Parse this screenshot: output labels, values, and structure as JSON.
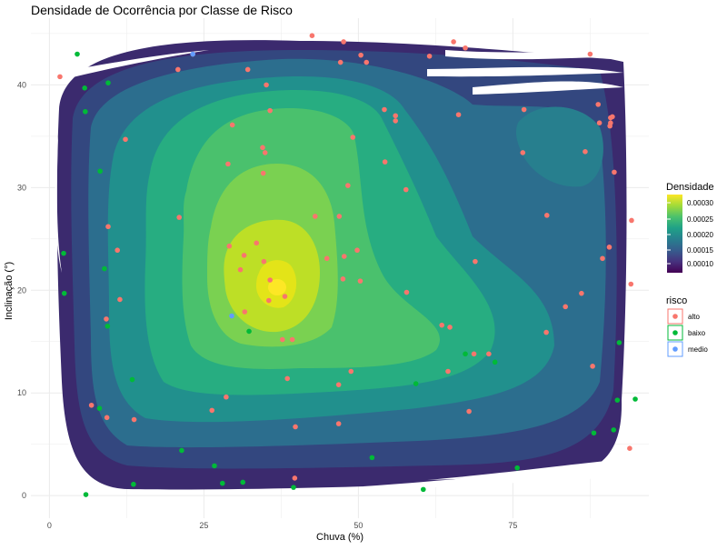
{
  "chart_data": {
    "type": "scatter",
    "title": "Densidade de Ocorrência por Classe de Risco",
    "xlabel": "Chuva (%)",
    "ylabel": "Inclinação (°)",
    "xlim": [
      -3,
      97
    ],
    "ylim": [
      -2.2,
      46.5
    ],
    "xticks": [
      0,
      25,
      50,
      75
    ],
    "yticks": [
      0,
      10,
      20,
      30,
      40
    ],
    "grid": true,
    "density_legend": {
      "title": "Densidade",
      "labels": [
        "0.00030",
        "0.00025",
        "0.00020",
        "0.00015",
        "0.00010"
      ],
      "gradient": [
        "#fde725",
        "#a0da39",
        "#4ac16d",
        "#1fa187",
        "#277f8e",
        "#365c8d",
        "#46327e",
        "#440154"
      ]
    },
    "risk_legend": {
      "title": "risco",
      "entries": [
        {
          "label": "alto",
          "color": "#f8766d"
        },
        {
          "label": "baixo",
          "color": "#00ba38"
        },
        {
          "label": "medio",
          "color": "#619cff"
        }
      ]
    },
    "series": [
      {
        "name": "alto",
        "color": "#f8766d",
        "points": [
          [
            1.7,
            40.8
          ],
          [
            12.3,
            34.7
          ],
          [
            20.8,
            41.5
          ],
          [
            23.2,
            43.0
          ],
          [
            32.1,
            41.5
          ],
          [
            35.1,
            40.0
          ],
          [
            35.7,
            37.5
          ],
          [
            42.5,
            44.8
          ],
          [
            47.6,
            44.2
          ],
          [
            47.1,
            42.2
          ],
          [
            51.3,
            42.2
          ],
          [
            50.4,
            42.9
          ],
          [
            54.2,
            37.6
          ],
          [
            56.0,
            37.0
          ],
          [
            56.0,
            36.5
          ],
          [
            61.5,
            42.8
          ],
          [
            65.4,
            44.2
          ],
          [
            67.3,
            43.6
          ],
          [
            66.2,
            37.1
          ],
          [
            76.8,
            37.6
          ],
          [
            87.5,
            43.0
          ],
          [
            88.8,
            38.1
          ],
          [
            89.0,
            36.3
          ],
          [
            90.8,
            36.3
          ],
          [
            90.8,
            36.8
          ],
          [
            91.1,
            36.9
          ],
          [
            90.7,
            36.0
          ],
          [
            29.6,
            36.1
          ],
          [
            28.9,
            32.3
          ],
          [
            34.9,
            33.4
          ],
          [
            34.5,
            33.9
          ],
          [
            34.6,
            31.4
          ],
          [
            49.1,
            34.9
          ],
          [
            48.3,
            30.2
          ],
          [
            54.3,
            32.5
          ],
          [
            57.7,
            29.8
          ],
          [
            76.6,
            33.4
          ],
          [
            86.7,
            33.5
          ],
          [
            91.4,
            31.5
          ],
          [
            21.0,
            27.1
          ],
          [
            9.5,
            26.2
          ],
          [
            11.0,
            23.9
          ],
          [
            29.1,
            24.3
          ],
          [
            31.5,
            23.4
          ],
          [
            30.9,
            22.0
          ],
          [
            33.5,
            24.6
          ],
          [
            34.7,
            22.8
          ],
          [
            35.7,
            21.0
          ],
          [
            35.5,
            19.0
          ],
          [
            31.6,
            17.9
          ],
          [
            37.7,
            15.2
          ],
          [
            39.3,
            15.2
          ],
          [
            38.1,
            19.4
          ],
          [
            43.0,
            27.2
          ],
          [
            44.9,
            23.1
          ],
          [
            46.9,
            27.2
          ],
          [
            47.7,
            23.3
          ],
          [
            47.5,
            21.1
          ],
          [
            49.8,
            23.9
          ],
          [
            50.3,
            20.9
          ],
          [
            57.8,
            19.8
          ],
          [
            63.5,
            16.6
          ],
          [
            64.8,
            16.4
          ],
          [
            68.9,
            22.8
          ],
          [
            68.7,
            13.8
          ],
          [
            71.1,
            13.8
          ],
          [
            80.5,
            27.3
          ],
          [
            80.4,
            15.9
          ],
          [
            83.5,
            18.4
          ],
          [
            86.1,
            19.7
          ],
          [
            89.5,
            23.1
          ],
          [
            90.6,
            24.2
          ],
          [
            94.2,
            26.8
          ],
          [
            94.1,
            20.6
          ],
          [
            11.4,
            19.1
          ],
          [
            9.2,
            17.2
          ],
          [
            6.8,
            8.8
          ],
          [
            9.3,
            7.6
          ],
          [
            13.7,
            7.4
          ],
          [
            26.3,
            8.3
          ],
          [
            28.6,
            9.6
          ],
          [
            38.5,
            11.4
          ],
          [
            46.8,
            10.8
          ],
          [
            48.8,
            12.1
          ],
          [
            46.8,
            7.0
          ],
          [
            39.8,
            6.7
          ],
          [
            64.5,
            12.1
          ],
          [
            67.9,
            8.2
          ],
          [
            87.9,
            12.6
          ],
          [
            93.9,
            4.6
          ],
          [
            39.7,
            1.7
          ]
        ]
      },
      {
        "name": "baixo",
        "color": "#00ba38",
        "points": [
          [
            4.5,
            43.0
          ],
          [
            5.7,
            39.7
          ],
          [
            5.8,
            37.4
          ],
          [
            9.5,
            40.2
          ],
          [
            8.2,
            31.6
          ],
          [
            2.3,
            23.6
          ],
          [
            2.4,
            19.7
          ],
          [
            8.9,
            22.1
          ],
          [
            9.4,
            16.5
          ],
          [
            32.3,
            16.0
          ],
          [
            13.4,
            11.3
          ],
          [
            8.1,
            8.5
          ],
          [
            21.4,
            4.4
          ],
          [
            26.7,
            2.9
          ],
          [
            28.0,
            1.2
          ],
          [
            31.3,
            1.3
          ],
          [
            13.6,
            1.1
          ],
          [
            5.9,
            0.1
          ],
          [
            39.5,
            0.8
          ],
          [
            52.2,
            3.7
          ],
          [
            59.3,
            10.9
          ],
          [
            60.5,
            0.6
          ],
          [
            67.3,
            13.8
          ],
          [
            72.1,
            13.0
          ],
          [
            75.7,
            2.7
          ],
          [
            88.1,
            6.1
          ],
          [
            92.2,
            14.9
          ],
          [
            91.9,
            9.3
          ],
          [
            91.3,
            6.4
          ],
          [
            94.8,
            9.4
          ]
        ]
      },
      {
        "name": "medio",
        "color": "#619cff",
        "points": [
          [
            23.2,
            43.0
          ],
          [
            29.5,
            17.5
          ]
        ]
      }
    ]
  }
}
